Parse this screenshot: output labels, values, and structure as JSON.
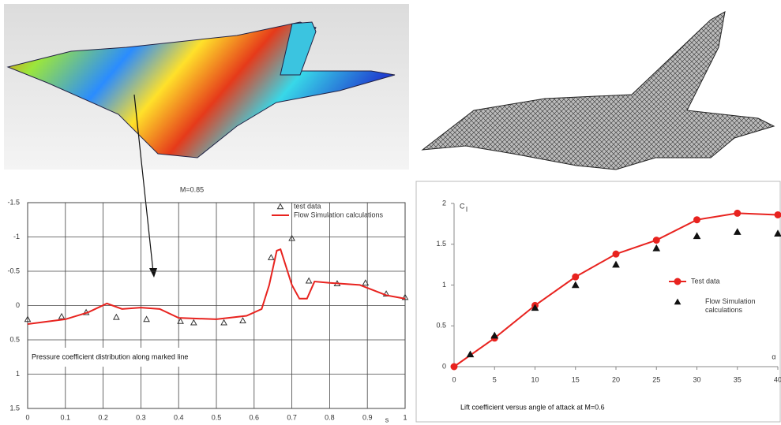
{
  "chart_data": [
    {
      "type": "line",
      "title": "M=0.85",
      "x_label": "s",
      "annotation": "Pressure coefficient distribution along marked line",
      "xlim": [
        0,
        1
      ],
      "xticks": [
        0,
        0.1,
        0.2,
        0.3,
        0.4,
        0.5,
        0.6,
        0.7,
        0.8,
        0.9,
        1
      ],
      "ylim": [
        -1.5,
        1.5
      ],
      "yticks": [
        -1.5,
        -1,
        -0.5,
        0,
        0.5,
        1,
        1.5
      ],
      "y_reversed": true,
      "grid": true,
      "legend": "upper right",
      "series": [
        {
          "name": "test data",
          "color": "#333333",
          "style": "markers",
          "marker": "triangle",
          "filled": false,
          "x": [
            0,
            0.09,
            0.155,
            0.235,
            0.315,
            0.405,
            0.44,
            0.52,
            0.57,
            0.645,
            0.7,
            0.745,
            0.82,
            0.895,
            0.95,
            1.0
          ],
          "values": [
            0.2,
            0.16,
            0.1,
            0.17,
            0.2,
            0.23,
            0.25,
            0.25,
            0.22,
            -0.7,
            -0.98,
            -0.36,
            -0.32,
            -0.33,
            -0.17,
            -0.12
          ]
        },
        {
          "name": "Flow Simulation calculations",
          "color": "#e8231f",
          "style": "line",
          "x": [
            0,
            0.1,
            0.16,
            0.21,
            0.25,
            0.3,
            0.35,
            0.4,
            0.5,
            0.58,
            0.62,
            0.64,
            0.66,
            0.67,
            0.7,
            0.72,
            0.74,
            0.76,
            0.8,
            0.88,
            0.95,
            1.0
          ],
          "values": [
            0.27,
            0.2,
            0.1,
            -0.03,
            0.05,
            0.03,
            0.05,
            0.18,
            0.2,
            0.15,
            0.05,
            -0.3,
            -0.8,
            -0.82,
            -0.3,
            -0.1,
            -0.1,
            -0.35,
            -0.33,
            -0.3,
            -0.15,
            -0.1
          ]
        }
      ]
    },
    {
      "type": "line",
      "y_label": "C",
      "y_label_sub": "l",
      "x_label": "α",
      "annotation": "Lift coefficient versus angle of attack at M=0.6",
      "xlim": [
        0,
        40
      ],
      "xticks": [
        0,
        5,
        10,
        15,
        20,
        25,
        30,
        35,
        40
      ],
      "ylim": [
        0,
        2
      ],
      "yticks": [
        0,
        0.5,
        1,
        1.5,
        2
      ],
      "y_reversed": false,
      "grid": false,
      "legend": "center right",
      "series": [
        {
          "name": "Test data",
          "color": "#e8231f",
          "style": "line+markers",
          "marker": "circle",
          "filled": true,
          "x": [
            0,
            5,
            10,
            15,
            20,
            25,
            30,
            35,
            40
          ],
          "values": [
            0,
            0.35,
            0.75,
            1.1,
            1.38,
            1.55,
            1.8,
            1.88,
            1.86
          ]
        },
        {
          "name": "Flow Simulation calculations",
          "color": "#111111",
          "style": "markers",
          "marker": "triangle",
          "filled": true,
          "x": [
            2,
            5,
            10,
            15,
            20,
            25,
            30,
            35,
            40
          ],
          "values": [
            0.15,
            0.38,
            0.72,
            1.0,
            1.25,
            1.45,
            1.6,
            1.65,
            1.63
          ]
        }
      ]
    }
  ]
}
